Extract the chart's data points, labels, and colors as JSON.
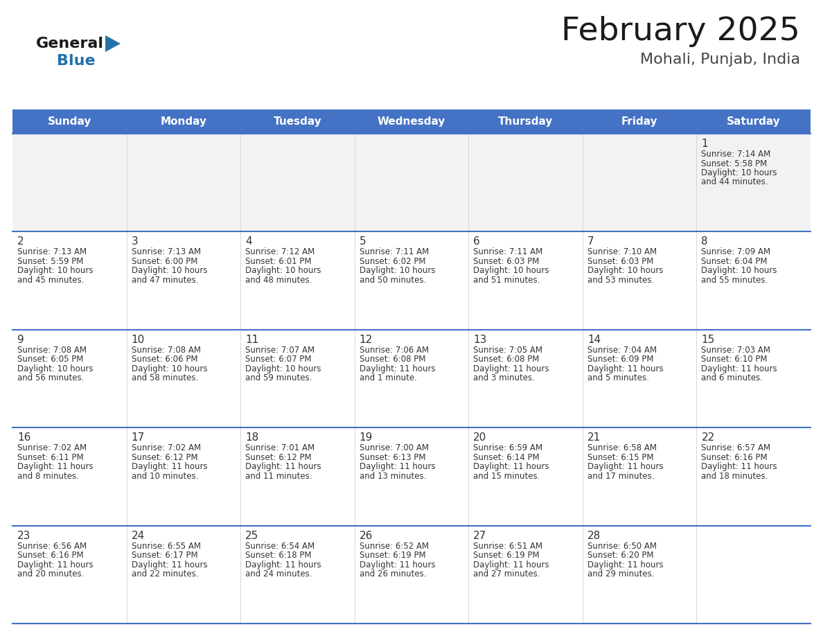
{
  "title": "February 2025",
  "subtitle": "Mohali, Punjab, India",
  "header_bg": "#4472C4",
  "header_text_color": "#FFFFFF",
  "days_of_week": [
    "Sunday",
    "Monday",
    "Tuesday",
    "Wednesday",
    "Thursday",
    "Friday",
    "Saturday"
  ],
  "row_bg_white": "#FFFFFF",
  "row_bg_gray": "#F2F2F2",
  "cell_border_color": "#4472C4",
  "title_color": "#1a1a1a",
  "subtitle_color": "#444444",
  "day_number_color": "#333333",
  "info_text_color": "#333333",
  "logo_general_color": "#1a1a1a",
  "logo_blue_color": "#2471a8",
  "calendar_data": [
    [
      {
        "day": null,
        "sunrise": null,
        "sunset": null,
        "daylight": null
      },
      {
        "day": null,
        "sunrise": null,
        "sunset": null,
        "daylight": null
      },
      {
        "day": null,
        "sunrise": null,
        "sunset": null,
        "daylight": null
      },
      {
        "day": null,
        "sunrise": null,
        "sunset": null,
        "daylight": null
      },
      {
        "day": null,
        "sunrise": null,
        "sunset": null,
        "daylight": null
      },
      {
        "day": null,
        "sunrise": null,
        "sunset": null,
        "daylight": null
      },
      {
        "day": 1,
        "sunrise": "7:14 AM",
        "sunset": "5:58 PM",
        "daylight": "10 hours\nand 44 minutes."
      }
    ],
    [
      {
        "day": 2,
        "sunrise": "7:13 AM",
        "sunset": "5:59 PM",
        "daylight": "10 hours\nand 45 minutes."
      },
      {
        "day": 3,
        "sunrise": "7:13 AM",
        "sunset": "6:00 PM",
        "daylight": "10 hours\nand 47 minutes."
      },
      {
        "day": 4,
        "sunrise": "7:12 AM",
        "sunset": "6:01 PM",
        "daylight": "10 hours\nand 48 minutes."
      },
      {
        "day": 5,
        "sunrise": "7:11 AM",
        "sunset": "6:02 PM",
        "daylight": "10 hours\nand 50 minutes."
      },
      {
        "day": 6,
        "sunrise": "7:11 AM",
        "sunset": "6:03 PM",
        "daylight": "10 hours\nand 51 minutes."
      },
      {
        "day": 7,
        "sunrise": "7:10 AM",
        "sunset": "6:03 PM",
        "daylight": "10 hours\nand 53 minutes."
      },
      {
        "day": 8,
        "sunrise": "7:09 AM",
        "sunset": "6:04 PM",
        "daylight": "10 hours\nand 55 minutes."
      }
    ],
    [
      {
        "day": 9,
        "sunrise": "7:08 AM",
        "sunset": "6:05 PM",
        "daylight": "10 hours\nand 56 minutes."
      },
      {
        "day": 10,
        "sunrise": "7:08 AM",
        "sunset": "6:06 PM",
        "daylight": "10 hours\nand 58 minutes."
      },
      {
        "day": 11,
        "sunrise": "7:07 AM",
        "sunset": "6:07 PM",
        "daylight": "10 hours\nand 59 minutes."
      },
      {
        "day": 12,
        "sunrise": "7:06 AM",
        "sunset": "6:08 PM",
        "daylight": "11 hours\nand 1 minute."
      },
      {
        "day": 13,
        "sunrise": "7:05 AM",
        "sunset": "6:08 PM",
        "daylight": "11 hours\nand 3 minutes."
      },
      {
        "day": 14,
        "sunrise": "7:04 AM",
        "sunset": "6:09 PM",
        "daylight": "11 hours\nand 5 minutes."
      },
      {
        "day": 15,
        "sunrise": "7:03 AM",
        "sunset": "6:10 PM",
        "daylight": "11 hours\nand 6 minutes."
      }
    ],
    [
      {
        "day": 16,
        "sunrise": "7:02 AM",
        "sunset": "6:11 PM",
        "daylight": "11 hours\nand 8 minutes."
      },
      {
        "day": 17,
        "sunrise": "7:02 AM",
        "sunset": "6:12 PM",
        "daylight": "11 hours\nand 10 minutes."
      },
      {
        "day": 18,
        "sunrise": "7:01 AM",
        "sunset": "6:12 PM",
        "daylight": "11 hours\nand 11 minutes."
      },
      {
        "day": 19,
        "sunrise": "7:00 AM",
        "sunset": "6:13 PM",
        "daylight": "11 hours\nand 13 minutes."
      },
      {
        "day": 20,
        "sunrise": "6:59 AM",
        "sunset": "6:14 PM",
        "daylight": "11 hours\nand 15 minutes."
      },
      {
        "day": 21,
        "sunrise": "6:58 AM",
        "sunset": "6:15 PM",
        "daylight": "11 hours\nand 17 minutes."
      },
      {
        "day": 22,
        "sunrise": "6:57 AM",
        "sunset": "6:16 PM",
        "daylight": "11 hours\nand 18 minutes."
      }
    ],
    [
      {
        "day": 23,
        "sunrise": "6:56 AM",
        "sunset": "6:16 PM",
        "daylight": "11 hours\nand 20 minutes."
      },
      {
        "day": 24,
        "sunrise": "6:55 AM",
        "sunset": "6:17 PM",
        "daylight": "11 hours\nand 22 minutes."
      },
      {
        "day": 25,
        "sunrise": "6:54 AM",
        "sunset": "6:18 PM",
        "daylight": "11 hours\nand 24 minutes."
      },
      {
        "day": 26,
        "sunrise": "6:52 AM",
        "sunset": "6:19 PM",
        "daylight": "11 hours\nand 26 minutes."
      },
      {
        "day": 27,
        "sunrise": "6:51 AM",
        "sunset": "6:19 PM",
        "daylight": "11 hours\nand 27 minutes."
      },
      {
        "day": 28,
        "sunrise": "6:50 AM",
        "sunset": "6:20 PM",
        "daylight": "11 hours\nand 29 minutes."
      },
      {
        "day": null,
        "sunrise": null,
        "sunset": null,
        "daylight": null
      }
    ]
  ]
}
